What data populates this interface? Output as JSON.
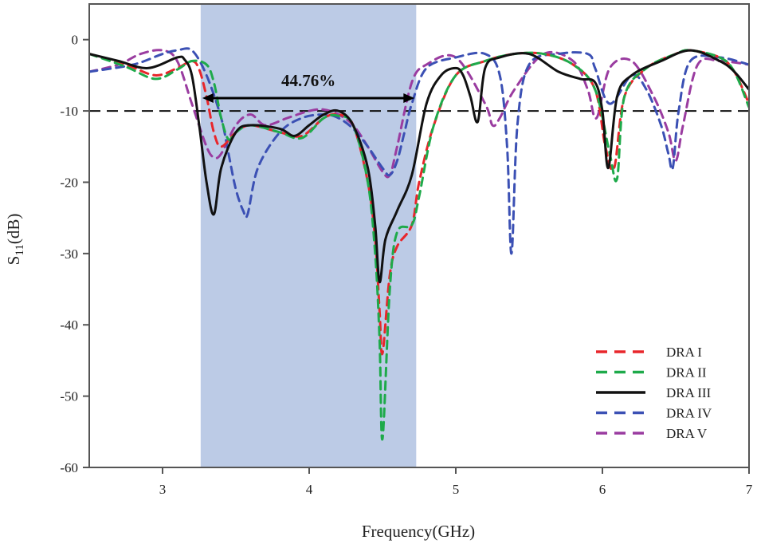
{
  "chart_data": {
    "type": "line",
    "title": "",
    "xlabel": "Frequency(GHz)",
    "ylabel": "S11(dB)",
    "ylabel_main": "S",
    "ylabel_sub": "11",
    "ylabel_unit": "(dB)",
    "xlim": [
      2.5,
      7
    ],
    "ylim": [
      -60,
      5
    ],
    "xticks": [
      3,
      4,
      5,
      6,
      7
    ],
    "yticks": [
      0,
      -10,
      -20,
      -30,
      -40,
      -50,
      -60
    ],
    "grid": false,
    "legend_position": "lower right",
    "reference_line": {
      "y": -10,
      "style": "dashed",
      "color": "#111111"
    },
    "highlight_band": {
      "x_start": 3.26,
      "x_end": 4.73,
      "color": "#bccbe6"
    },
    "annotation": {
      "text": "44.76%",
      "x_start": 3.26,
      "x_end": 4.73,
      "y": -8.2
    },
    "series": [
      {
        "name": "DRA I",
        "color": "#e8262b",
        "style": "dashed",
        "x": [
          2.5,
          2.75,
          2.95,
          3.1,
          3.2,
          3.25,
          3.3,
          3.35,
          3.4,
          3.5,
          3.6,
          3.8,
          3.95,
          4.1,
          4.2,
          4.3,
          4.4,
          4.45,
          4.48,
          4.5,
          4.55,
          4.6,
          4.7,
          4.75,
          4.85,
          5.0,
          5.2,
          5.4,
          5.6,
          5.8,
          5.95,
          6.02,
          6.08,
          6.15,
          6.3,
          6.5,
          6.6,
          6.8,
          6.9,
          7.0
        ],
        "y": [
          -2,
          -3.5,
          -5,
          -4,
          -3,
          -4.2,
          -8,
          -13,
          -15,
          -13,
          -12,
          -13,
          -13.5,
          -11,
          -10.5,
          -12,
          -20,
          -28,
          -38,
          -44,
          -33,
          -29,
          -26,
          -20,
          -12,
          -5,
          -3,
          -2,
          -2,
          -3.5,
          -7,
          -15,
          -18,
          -8,
          -4,
          -2,
          -1.5,
          -2.5,
          -4.5,
          -9
        ]
      },
      {
        "name": "DRA II",
        "color": "#1eaa4a",
        "style": "dashed",
        "x": [
          2.5,
          2.75,
          2.95,
          3.1,
          3.2,
          3.3,
          3.35,
          3.4,
          3.45,
          3.5,
          3.6,
          3.8,
          3.95,
          4.1,
          4.2,
          4.3,
          4.4,
          4.45,
          4.48,
          4.5,
          4.55,
          4.6,
          4.7,
          4.75,
          4.85,
          5.0,
          5.2,
          5.4,
          5.6,
          5.8,
          5.95,
          6.05,
          6.1,
          6.15,
          6.3,
          6.5,
          6.6,
          6.8,
          6.9,
          7.0
        ],
        "y": [
          -2,
          -3.8,
          -5.5,
          -4.2,
          -3,
          -3.5,
          -6,
          -11,
          -14,
          -13,
          -12,
          -13,
          -13.8,
          -11,
          -10.7,
          -12,
          -20,
          -30,
          -42,
          -56,
          -35,
          -27,
          -26,
          -22,
          -12,
          -5,
          -3,
          -2,
          -2,
          -3.5,
          -7,
          -16,
          -19.5,
          -8,
          -4,
          -2,
          -1.5,
          -2.5,
          -4.5,
          -9.5
        ]
      },
      {
        "name": "DRA III",
        "color": "#111111",
        "style": "solid",
        "x": [
          2.5,
          2.7,
          2.9,
          3.1,
          3.15,
          3.2,
          3.25,
          3.3,
          3.35,
          3.4,
          3.5,
          3.6,
          3.8,
          3.9,
          4.0,
          4.1,
          4.2,
          4.3,
          4.4,
          4.45,
          4.48,
          4.52,
          4.6,
          4.7,
          4.8,
          4.9,
          5.0,
          5.05,
          5.1,
          5.15,
          5.2,
          5.3,
          5.5,
          5.7,
          5.85,
          5.95,
          6.0,
          6.04,
          6.1,
          6.2,
          6.4,
          6.6,
          6.8,
          6.9,
          7.0
        ],
        "y": [
          -2,
          -3,
          -4,
          -2.5,
          -2.8,
          -5,
          -12,
          -20,
          -24.5,
          -18,
          -13,
          -12,
          -12.5,
          -13.5,
          -12,
          -10.5,
          -10,
          -12,
          -18,
          -26,
          -34,
          -28,
          -24,
          -19,
          -9,
          -5,
          -4,
          -5,
          -8,
          -11.5,
          -4,
          -2.5,
          -2,
          -4.5,
          -5.5,
          -6,
          -10,
          -18,
          -8,
          -5,
          -3,
          -1.5,
          -3,
          -4.5,
          -7
        ]
      },
      {
        "name": "DRA IV",
        "color": "#3b50b4",
        "style": "dashed",
        "x": [
          2.5,
          2.8,
          3.0,
          3.1,
          3.2,
          3.3,
          3.4,
          3.45,
          3.5,
          3.55,
          3.58,
          3.65,
          3.8,
          3.95,
          4.1,
          4.2,
          4.3,
          4.4,
          4.5,
          4.55,
          4.6,
          4.65,
          4.7,
          4.8,
          5.0,
          5.2,
          5.3,
          5.35,
          5.38,
          5.42,
          5.5,
          5.7,
          5.9,
          5.95,
          6.05,
          6.2,
          6.3,
          6.4,
          6.45,
          6.48,
          6.52,
          6.6,
          6.8,
          7.0
        ],
        "y": [
          -4.5,
          -3.5,
          -2,
          -1.5,
          -1.5,
          -5,
          -11,
          -16,
          -21,
          -24,
          -24.5,
          -18,
          -13,
          -11,
          -10.5,
          -11,
          -12.5,
          -15,
          -18,
          -19,
          -17,
          -13,
          -9,
          -4,
          -2.5,
          -2,
          -5,
          -15,
          -30,
          -12,
          -3.5,
          -2,
          -2,
          -4,
          -9,
          -5,
          -7,
          -12,
          -16,
          -18,
          -10,
          -3,
          -2.5,
          -3.5
        ]
      },
      {
        "name": "DRA V",
        "color": "#9a3ca0",
        "style": "dashed",
        "x": [
          2.5,
          2.7,
          2.85,
          3.0,
          3.1,
          3.2,
          3.3,
          3.35,
          3.4,
          3.5,
          3.6,
          3.7,
          3.85,
          4.0,
          4.1,
          4.2,
          4.3,
          4.4,
          4.5,
          4.55,
          4.6,
          4.7,
          4.8,
          5.0,
          5.2,
          5.25,
          5.3,
          5.4,
          5.6,
          5.8,
          5.9,
          5.96,
          6.05,
          6.2,
          6.35,
          6.45,
          6.5,
          6.55,
          6.65,
          6.8,
          7.0
        ],
        "y": [
          -4.5,
          -3.5,
          -2,
          -1.5,
          -3,
          -9,
          -15,
          -16.5,
          -16,
          -12,
          -10.5,
          -12,
          -11,
          -10,
          -9.8,
          -10.5,
          -12,
          -15,
          -18.5,
          -19,
          -15,
          -6,
          -3.5,
          -2.5,
          -9,
          -12,
          -11,
          -7,
          -2,
          -3,
          -7,
          -11,
          -4,
          -3,
          -8,
          -13,
          -17,
          -12,
          -3.5,
          -3,
          -3.5
        ]
      }
    ]
  }
}
